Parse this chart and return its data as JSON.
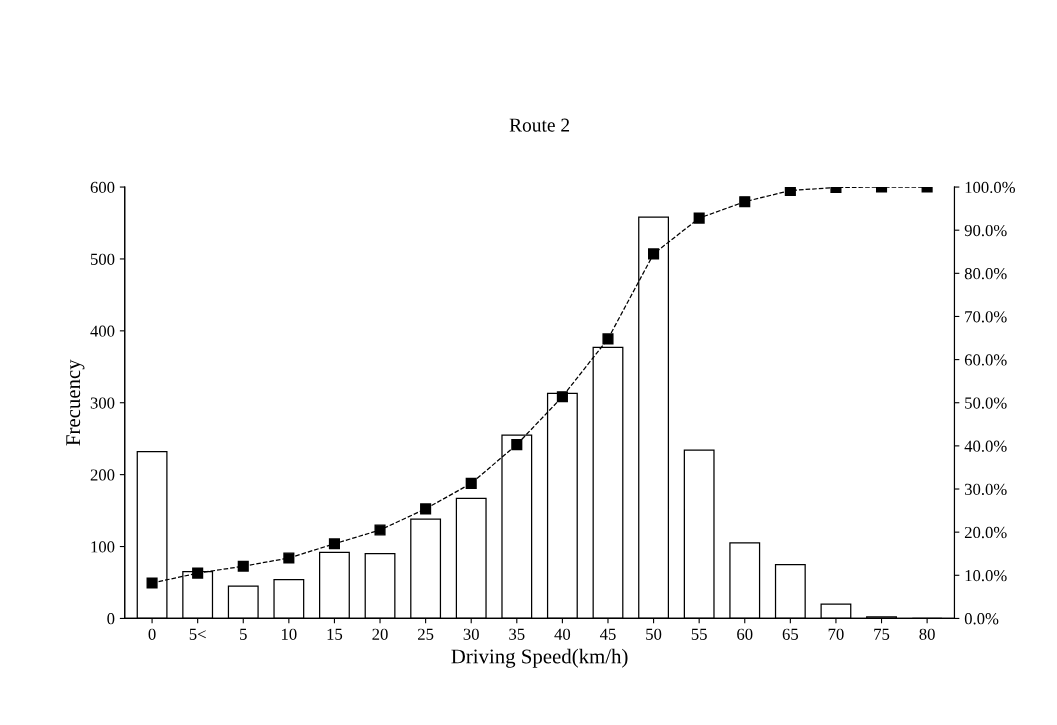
{
  "chart_data": {
    "type": "bar",
    "title": "Route 2",
    "xlabel": "Driving Speed(km/h)",
    "ylabel": "Frecuency",
    "categories": [
      "0",
      "5<",
      "5",
      "10",
      "15",
      "20",
      "25",
      "30",
      "35",
      "40",
      "45",
      "50",
      "55",
      "60",
      "65",
      "70",
      "75",
      "80"
    ],
    "series": [
      {
        "color": "#ffffff",
        "values": [
          232,
          65,
          45,
          54,
          92,
          90,
          138,
          167,
          255,
          313,
          377,
          558,
          234,
          105,
          75,
          20,
          2,
          0
        ]
      },
      {
        "type": "line",
        "axis": "y2",
        "color": "#000000",
        "marker": "square",
        "line_style": "dashed",
        "values": [
          8.2,
          10.5,
          12.1,
          14.0,
          17.3,
          20.5,
          25.4,
          31.3,
          40.3,
          51.4,
          64.8,
          84.5,
          92.8,
          96.6,
          99.2,
          99.9,
          100,
          100
        ]
      }
    ],
    "ylim": [
      0,
      600
    ],
    "yticks": [
      0,
      100,
      200,
      300,
      400,
      500,
      600
    ],
    "y2lim": [
      0,
      100
    ],
    "y2ticks": [
      {
        "value": 0,
        "label": "0.0%"
      },
      {
        "value": 10,
        "label": "10.0%"
      },
      {
        "value": 20,
        "label": "20.0%"
      },
      {
        "value": 30,
        "label": "30.0%"
      },
      {
        "value": 40,
        "label": "40.0%"
      },
      {
        "value": 50,
        "label": "50.0%"
      },
      {
        "value": 60,
        "label": "60.0%"
      },
      {
        "value": 70,
        "label": "70.0%"
      },
      {
        "value": 80,
        "label": "80.0%"
      },
      {
        "value": 90,
        "label": "90.0%"
      },
      {
        "value": 100,
        "label": "100.0%"
      }
    ],
    "grid": false,
    "legend": false
  }
}
